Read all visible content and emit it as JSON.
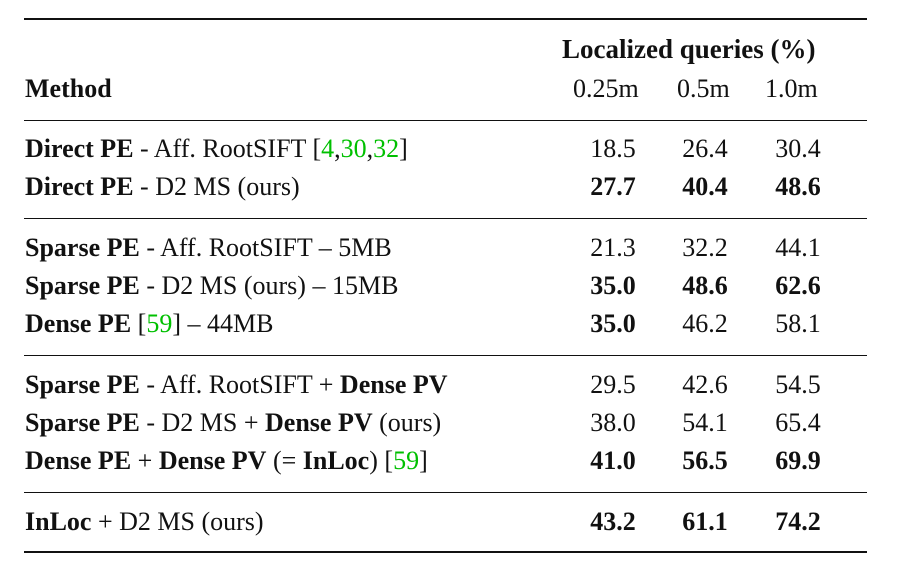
{
  "table": {
    "group_header": "Localized queries (%)",
    "method_header": "Method",
    "sub_headers": [
      "0.25m",
      "0.5m",
      "1.0m"
    ],
    "sections": [
      {
        "rows": [
          {
            "method_bold": "Direct PE",
            "method_rest": " - Aff. RootSIFT [",
            "citations": [
              "4",
              "30",
              "32"
            ],
            "method_tail": "]",
            "values": [
              "18.5",
              "26.4",
              "30.4"
            ],
            "bold": [
              false,
              false,
              false
            ]
          },
          {
            "method_bold": "Direct PE",
            "method_rest": " - D2 MS (ours)",
            "values": [
              "27.7",
              "40.4",
              "48.6"
            ],
            "bold": [
              true,
              true,
              true
            ]
          }
        ]
      },
      {
        "rows": [
          {
            "method_bold": "Sparse PE",
            "method_rest": " - Aff. RootSIFT – 5MB",
            "values": [
              "21.3",
              "32.2",
              "44.1"
            ],
            "bold": [
              false,
              false,
              false
            ]
          },
          {
            "method_bold": "Sparse PE",
            "method_rest": " - D2 MS (ours) – 15MB",
            "values": [
              "35.0",
              "48.6",
              "62.6"
            ],
            "bold": [
              true,
              true,
              true
            ]
          },
          {
            "method_bold": "Dense PE",
            "method_rest": " [",
            "citation": "59",
            "method_tail": "] – 44MB",
            "values": [
              "35.0",
              "46.2",
              "58.1"
            ],
            "bold": [
              true,
              false,
              false
            ]
          }
        ]
      },
      {
        "rows": [
          {
            "method_bold": "Sparse PE",
            "method_rest": " - Aff. RootSIFT + ",
            "method_bold2": "Dense PV",
            "values": [
              "29.5",
              "42.6",
              "54.5"
            ],
            "bold": [
              false,
              false,
              false
            ]
          },
          {
            "method_bold": "Sparse PE",
            "method_rest": " - D2 MS + ",
            "method_bold2": "Dense PV",
            "method_tail": " (ours)",
            "values": [
              "38.0",
              "54.1",
              "65.4"
            ],
            "bold": [
              false,
              false,
              false
            ]
          },
          {
            "method_bold": "Dense PE",
            "method_rest": " + ",
            "method_bold2": "Dense PV",
            "method_mid": " (= ",
            "method_bold3": "InLoc",
            "method_rest2": ") [",
            "citation": "59",
            "method_tail": "]",
            "values": [
              "41.0",
              "56.5",
              "69.9"
            ],
            "bold": [
              true,
              true,
              true
            ]
          }
        ]
      },
      {
        "rows": [
          {
            "method_bold": "InLoc",
            "method_rest": " + D2 MS (ours)",
            "values": [
              "43.2",
              "61.1",
              "74.2"
            ],
            "bold": [
              true,
              true,
              true
            ]
          }
        ]
      }
    ]
  }
}
